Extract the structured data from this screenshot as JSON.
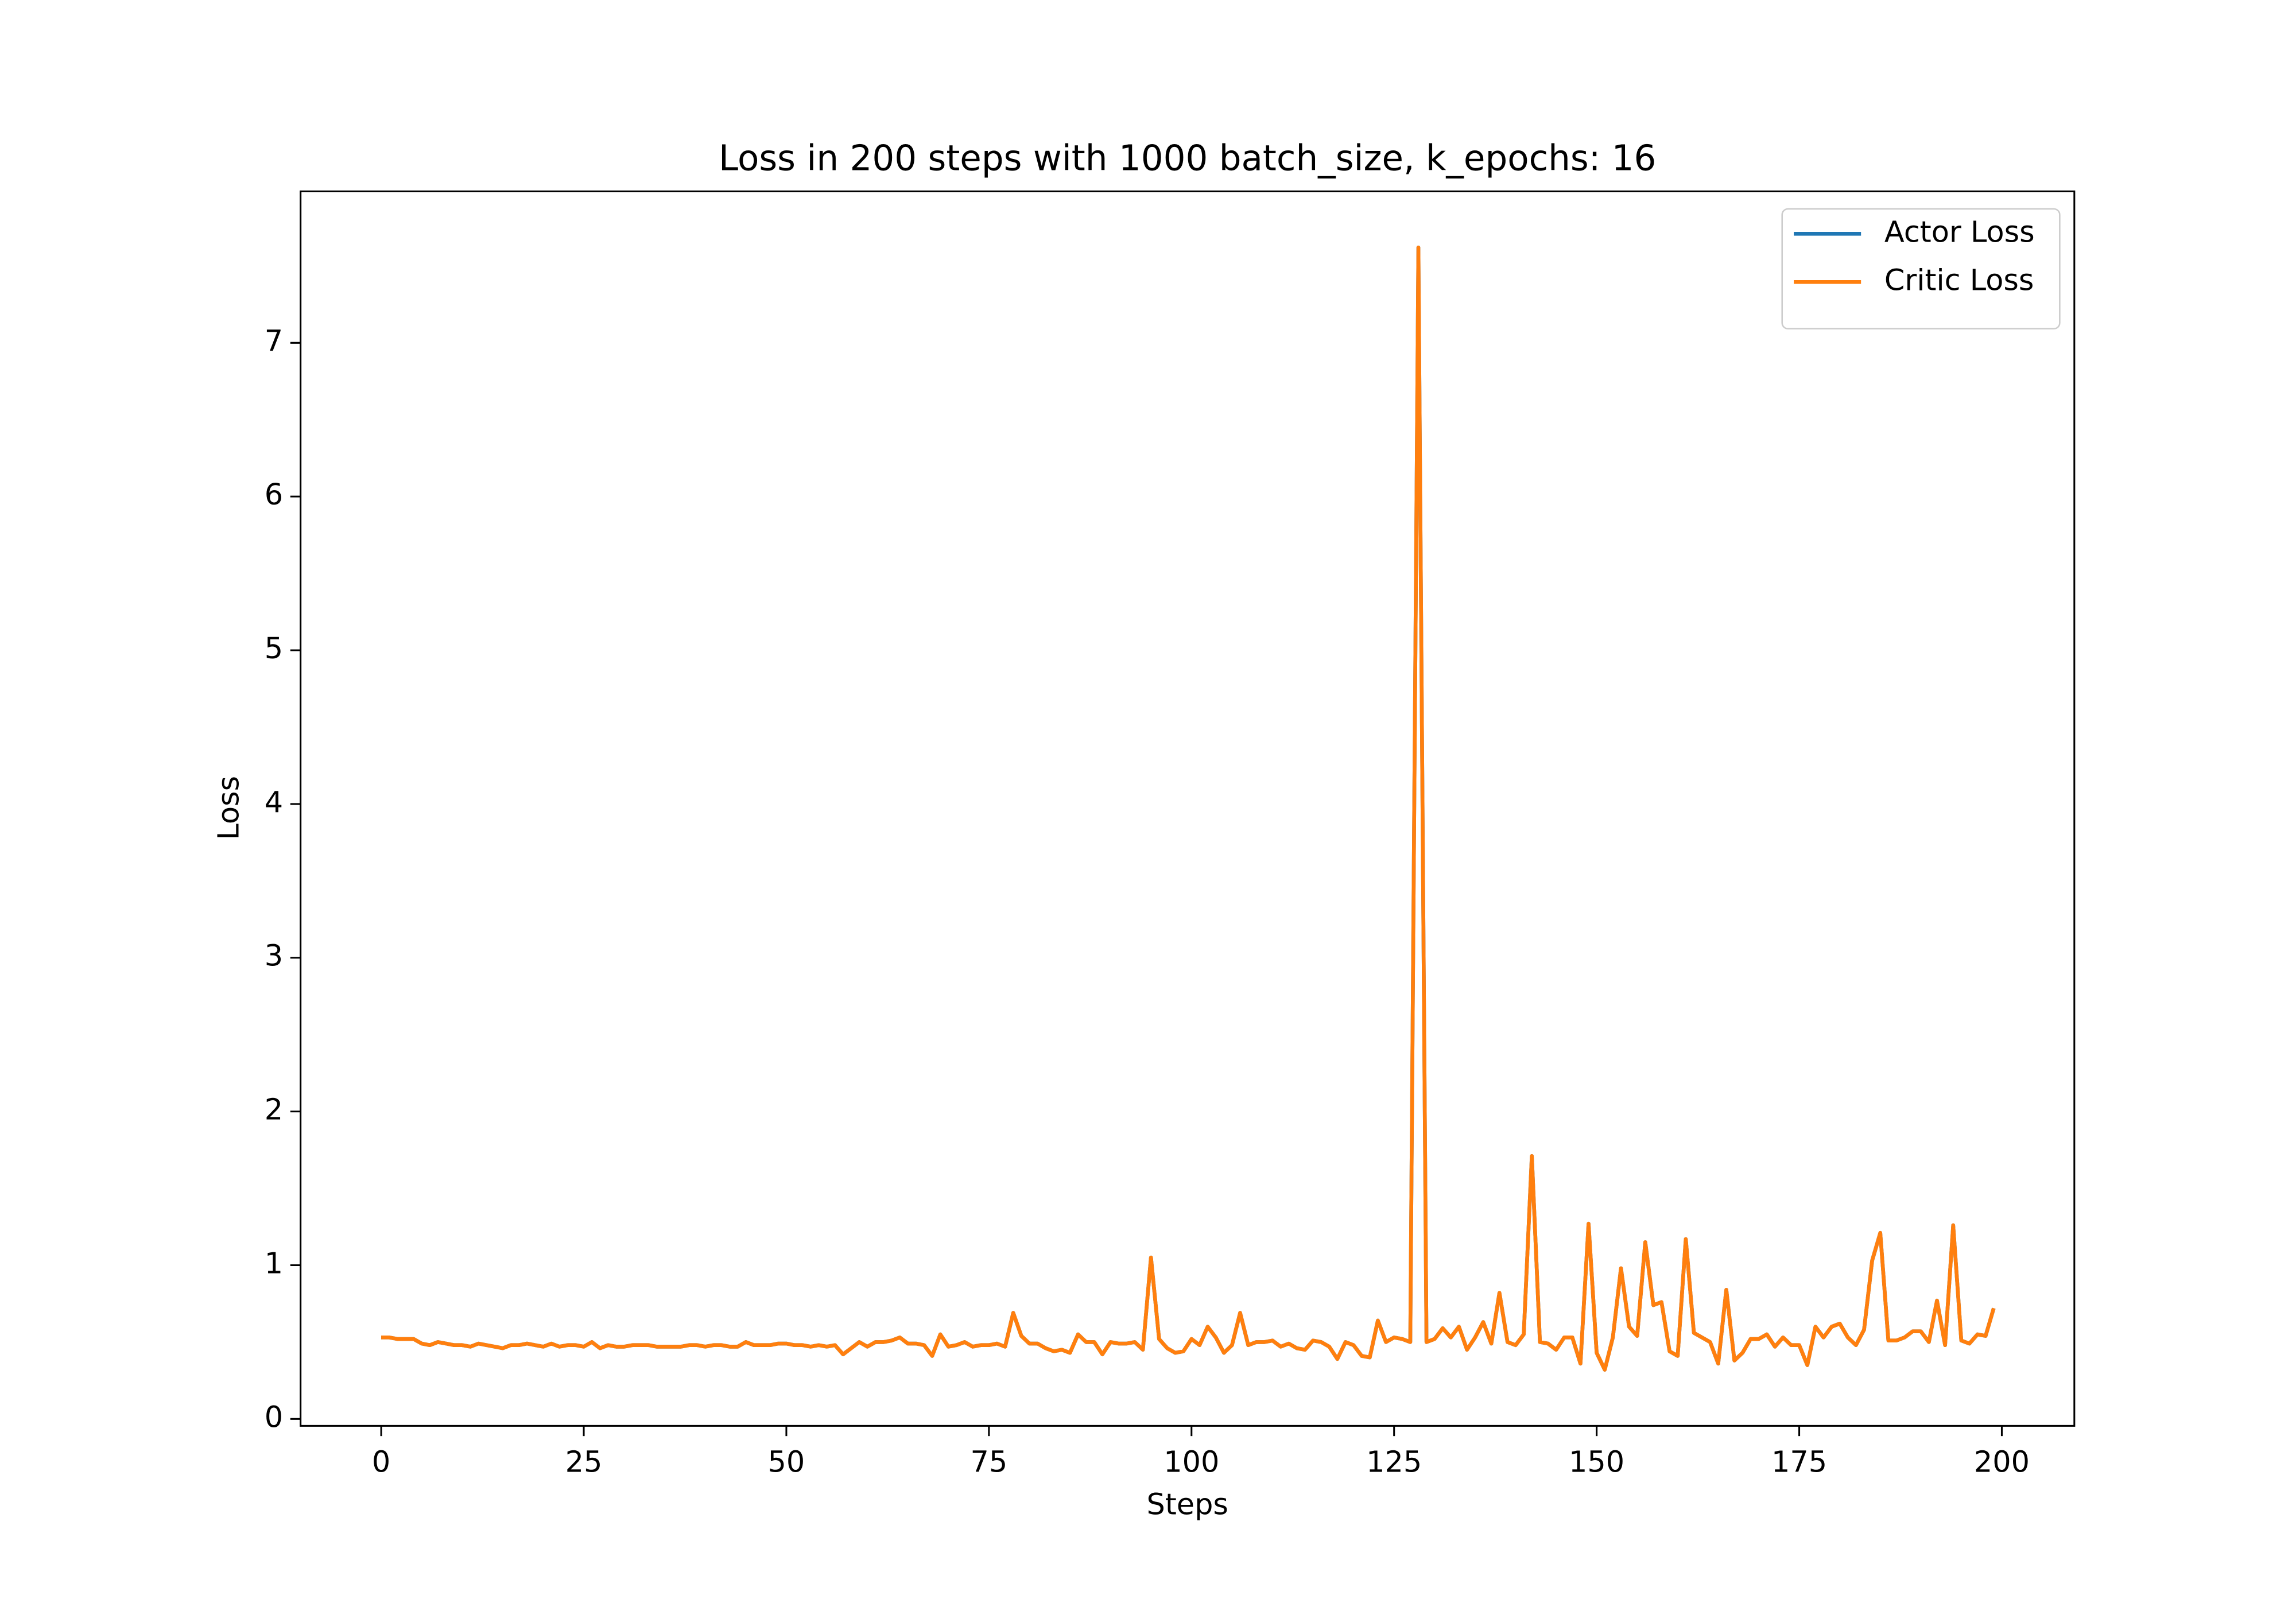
{
  "chart_data": {
    "type": "line",
    "title": "Loss in 200 steps with 1000 batch_size, k_epochs: 16",
    "xlabel": "Steps",
    "ylabel": "Loss",
    "x": [
      0,
      1,
      2,
      3,
      4,
      5,
      6,
      7,
      8,
      9,
      10,
      11,
      12,
      13,
      14,
      15,
      16,
      17,
      18,
      19,
      20,
      21,
      22,
      23,
      24,
      25,
      26,
      27,
      28,
      29,
      30,
      31,
      32,
      33,
      34,
      35,
      36,
      37,
      38,
      39,
      40,
      41,
      42,
      43,
      44,
      45,
      46,
      47,
      48,
      49,
      50,
      51,
      52,
      53,
      54,
      55,
      56,
      57,
      58,
      59,
      60,
      61,
      62,
      63,
      64,
      65,
      66,
      67,
      68,
      69,
      70,
      71,
      72,
      73,
      74,
      75,
      76,
      77,
      78,
      79,
      80,
      81,
      82,
      83,
      84,
      85,
      86,
      87,
      88,
      89,
      90,
      91,
      92,
      93,
      94,
      95,
      96,
      97,
      98,
      99,
      100,
      101,
      102,
      103,
      104,
      105,
      106,
      107,
      108,
      109,
      110,
      111,
      112,
      113,
      114,
      115,
      116,
      117,
      118,
      119,
      120,
      121,
      122,
      123,
      124,
      125,
      126,
      127,
      128,
      129,
      130,
      131,
      132,
      133,
      134,
      135,
      136,
      137,
      138,
      139,
      140,
      141,
      142,
      143,
      144,
      145,
      146,
      147,
      148,
      149,
      150,
      151,
      152,
      153,
      154,
      155,
      156,
      157,
      158,
      159,
      160,
      161,
      162,
      163,
      164,
      165,
      166,
      167,
      168,
      169,
      170,
      171,
      172,
      173,
      174,
      175,
      176,
      177,
      178,
      179,
      180,
      181,
      182,
      183,
      184,
      185,
      186,
      187,
      188,
      189,
      190,
      191,
      192,
      193,
      194,
      195,
      196,
      197,
      198,
      199
    ],
    "series": [
      {
        "name": "Actor Loss",
        "color": "#1f77b4",
        "values": [
          0.53,
          0.53,
          0.52,
          0.52,
          0.52,
          0.49,
          0.48,
          0.5,
          0.49,
          0.48,
          0.48,
          0.47,
          0.49,
          0.48,
          0.47,
          0.46,
          0.48,
          0.48,
          0.49,
          0.48,
          0.47,
          0.49,
          0.47,
          0.48,
          0.48,
          0.47,
          0.5,
          0.46,
          0.48,
          0.47,
          0.47,
          0.48,
          0.48,
          0.48,
          0.47,
          0.47,
          0.47,
          0.47,
          0.48,
          0.48,
          0.47,
          0.48,
          0.48,
          0.47,
          0.47,
          0.5,
          0.48,
          0.48,
          0.48,
          0.49,
          0.49,
          0.48,
          0.48,
          0.47,
          0.48,
          0.47,
          0.48,
          0.42,
          0.46,
          0.5,
          0.47,
          0.5,
          0.5,
          0.51,
          0.53,
          0.49,
          0.49,
          0.48,
          0.41,
          0.55,
          0.47,
          0.48,
          0.5,
          0.47,
          0.48,
          0.48,
          0.49,
          0.47,
          0.69,
          0.54,
          0.49,
          0.49,
          0.46,
          0.44,
          0.45,
          0.43,
          0.55,
          0.5,
          0.5,
          0.42,
          0.5,
          0.49,
          0.49,
          0.5,
          0.45,
          1.05,
          0.52,
          0.46,
          0.43,
          0.44,
          0.52,
          0.48,
          0.6,
          0.53,
          0.43,
          0.48,
          0.69,
          0.48,
          0.5,
          0.5,
          0.51,
          0.47,
          0.49,
          0.46,
          0.45,
          0.51,
          0.5,
          0.47,
          0.39,
          0.5,
          0.48,
          0.41,
          0.4,
          0.64,
          0.5,
          0.53,
          0.52,
          0.5,
          7.62,
          0.5,
          0.52,
          0.59,
          0.53,
          0.6,
          0.45,
          0.53,
          0.63,
          0.49,
          0.82,
          0.5,
          0.48,
          0.55,
          1.71,
          0.5,
          0.49,
          0.45,
          0.53,
          0.53,
          0.36,
          1.27,
          0.43,
          0.32,
          0.53,
          0.98,
          0.6,
          0.54,
          1.15,
          0.74,
          0.76,
          0.44,
          0.41,
          1.17,
          0.56,
          0.53,
          0.5,
          0.36,
          0.84,
          0.38,
          0.43,
          0.52,
          0.52,
          0.55,
          0.47,
          0.53,
          0.48,
          0.48,
          0.35,
          0.6,
          0.53,
          0.6,
          0.62,
          0.53,
          0.48,
          0.58,
          1.03,
          1.21,
          0.51,
          0.51,
          0.53,
          0.57,
          0.57,
          0.5,
          0.77,
          0.48,
          1.26,
          0.51,
          0.49,
          0.55,
          0.54,
          0.72
        ]
      },
      {
        "name": "Critic Loss",
        "color": "#ff7f0e",
        "values": [
          0.53,
          0.53,
          0.52,
          0.52,
          0.52,
          0.49,
          0.48,
          0.5,
          0.49,
          0.48,
          0.48,
          0.47,
          0.49,
          0.48,
          0.47,
          0.46,
          0.48,
          0.48,
          0.49,
          0.48,
          0.47,
          0.49,
          0.47,
          0.48,
          0.48,
          0.47,
          0.5,
          0.46,
          0.48,
          0.47,
          0.47,
          0.48,
          0.48,
          0.48,
          0.47,
          0.47,
          0.47,
          0.47,
          0.48,
          0.48,
          0.47,
          0.48,
          0.48,
          0.47,
          0.47,
          0.5,
          0.48,
          0.48,
          0.48,
          0.49,
          0.49,
          0.48,
          0.48,
          0.47,
          0.48,
          0.47,
          0.48,
          0.42,
          0.46,
          0.5,
          0.47,
          0.5,
          0.5,
          0.51,
          0.53,
          0.49,
          0.49,
          0.48,
          0.41,
          0.55,
          0.47,
          0.48,
          0.5,
          0.47,
          0.48,
          0.48,
          0.49,
          0.47,
          0.69,
          0.54,
          0.49,
          0.49,
          0.46,
          0.44,
          0.45,
          0.43,
          0.55,
          0.5,
          0.5,
          0.42,
          0.5,
          0.49,
          0.49,
          0.5,
          0.45,
          1.05,
          0.52,
          0.46,
          0.43,
          0.44,
          0.52,
          0.48,
          0.6,
          0.53,
          0.43,
          0.48,
          0.69,
          0.48,
          0.5,
          0.5,
          0.51,
          0.47,
          0.49,
          0.46,
          0.45,
          0.51,
          0.5,
          0.47,
          0.39,
          0.5,
          0.48,
          0.41,
          0.4,
          0.64,
          0.5,
          0.53,
          0.52,
          0.5,
          7.62,
          0.5,
          0.52,
          0.59,
          0.53,
          0.6,
          0.45,
          0.53,
          0.63,
          0.49,
          0.82,
          0.5,
          0.48,
          0.55,
          1.71,
          0.5,
          0.49,
          0.45,
          0.53,
          0.53,
          0.36,
          1.27,
          0.43,
          0.32,
          0.53,
          0.98,
          0.6,
          0.54,
          1.15,
          0.74,
          0.76,
          0.44,
          0.41,
          1.17,
          0.56,
          0.53,
          0.5,
          0.36,
          0.84,
          0.38,
          0.43,
          0.52,
          0.52,
          0.55,
          0.47,
          0.53,
          0.48,
          0.48,
          0.35,
          0.6,
          0.53,
          0.6,
          0.62,
          0.53,
          0.48,
          0.58,
          1.03,
          1.21,
          0.51,
          0.51,
          0.53,
          0.57,
          0.57,
          0.5,
          0.77,
          0.48,
          1.26,
          0.51,
          0.49,
          0.55,
          0.54,
          0.72
        ]
      }
    ],
    "xlim": [
      -9.95,
      208.95
    ],
    "xticks": [
      0,
      25,
      50,
      75,
      100,
      125,
      150,
      175,
      200
    ],
    "ylim": [
      -0.045,
      7.985
    ],
    "yticks": [
      0,
      1,
      2,
      3,
      4,
      5,
      6,
      7
    ],
    "legend": "upper right",
    "grid": false
  }
}
